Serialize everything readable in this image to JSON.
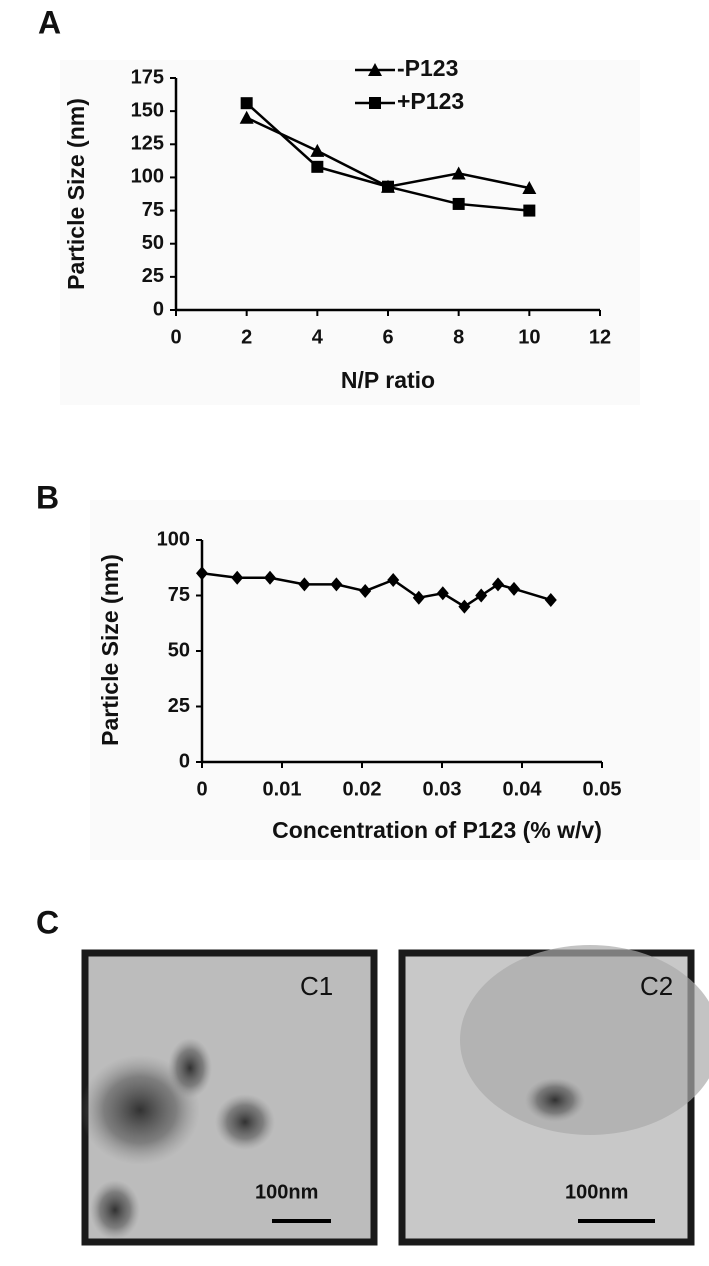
{
  "chart_data": [
    {
      "type": "line",
      "panel_label": "A",
      "x_label": "N/P ratio",
      "y_label": "Particle Size (nm)",
      "x": [
        2,
        4,
        6,
        8,
        10
      ],
      "series": [
        {
          "name": "-P123",
          "color": "#000000",
          "marker": "triangle",
          "values": [
            145,
            120,
            93,
            103,
            92
          ]
        },
        {
          "name": "+P123",
          "color": "#000000",
          "marker": "square",
          "values": [
            156,
            108,
            93,
            80,
            75
          ]
        }
      ],
      "xlim": [
        0,
        12
      ],
      "xticks": [
        0,
        2,
        4,
        6,
        8,
        10,
        12
      ],
      "ylim": [
        0,
        175
      ],
      "yticks": [
        0,
        25,
        50,
        75,
        100,
        125,
        150,
        175
      ],
      "legend": "top"
    },
    {
      "type": "line",
      "panel_label": "B",
      "x_label": "Concentration of P123 (% w/v)",
      "y_label": "Particle Size (nm)",
      "x": [
        0,
        0.0044,
        0.0085,
        0.0128,
        0.0168,
        0.0204,
        0.0239,
        0.0271,
        0.0301,
        0.0328,
        0.0349,
        0.037,
        0.039,
        0.0436
      ],
      "series": [
        {
          "color": "#000000",
          "marker": "diamond",
          "values": [
            85,
            83,
            83,
            80,
            80,
            77,
            82,
            74,
            76,
            70,
            75,
            80,
            78,
            73
          ]
        }
      ],
      "xlim": [
        0,
        0.05
      ],
      "xticks": [
        0,
        0.01,
        0.02,
        0.03,
        0.04,
        0.05
      ],
      "ylim": [
        0,
        100
      ],
      "yticks": [
        0,
        25,
        50,
        75,
        100
      ]
    }
  ],
  "panel_c": {
    "label": "C",
    "images": [
      {
        "label": "C1",
        "scale_bar": "100nm"
      },
      {
        "label": "C2",
        "scale_bar": "100nm"
      }
    ]
  }
}
